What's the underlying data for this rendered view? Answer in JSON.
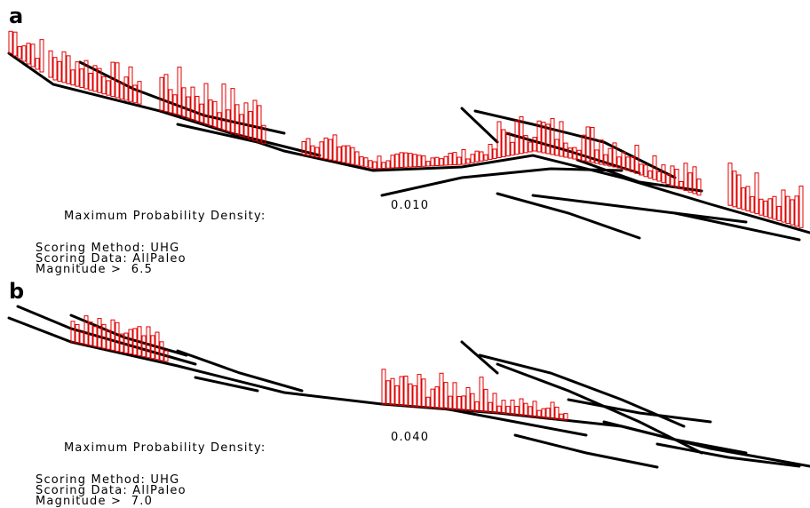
{
  "panels": [
    {
      "letter": "a",
      "density_label": "Maximum Probability Density:",
      "density_value": "0.010",
      "method_line": "Scoring Method: UHG",
      "data_line": "Scoring Data: AllPaleo",
      "magnitude_line": "Magnitude >  6.5"
    },
    {
      "letter": "b",
      "density_label": "Maximum Probability Density:",
      "density_value": "0.040",
      "method_line": "Scoring Method: UHG",
      "data_line": "Scoring Data: AllPaleo",
      "magnitude_line": "Magnitude >  7.0"
    }
  ],
  "colors": {
    "fault": "#000000",
    "bar": "#e00000"
  }
}
